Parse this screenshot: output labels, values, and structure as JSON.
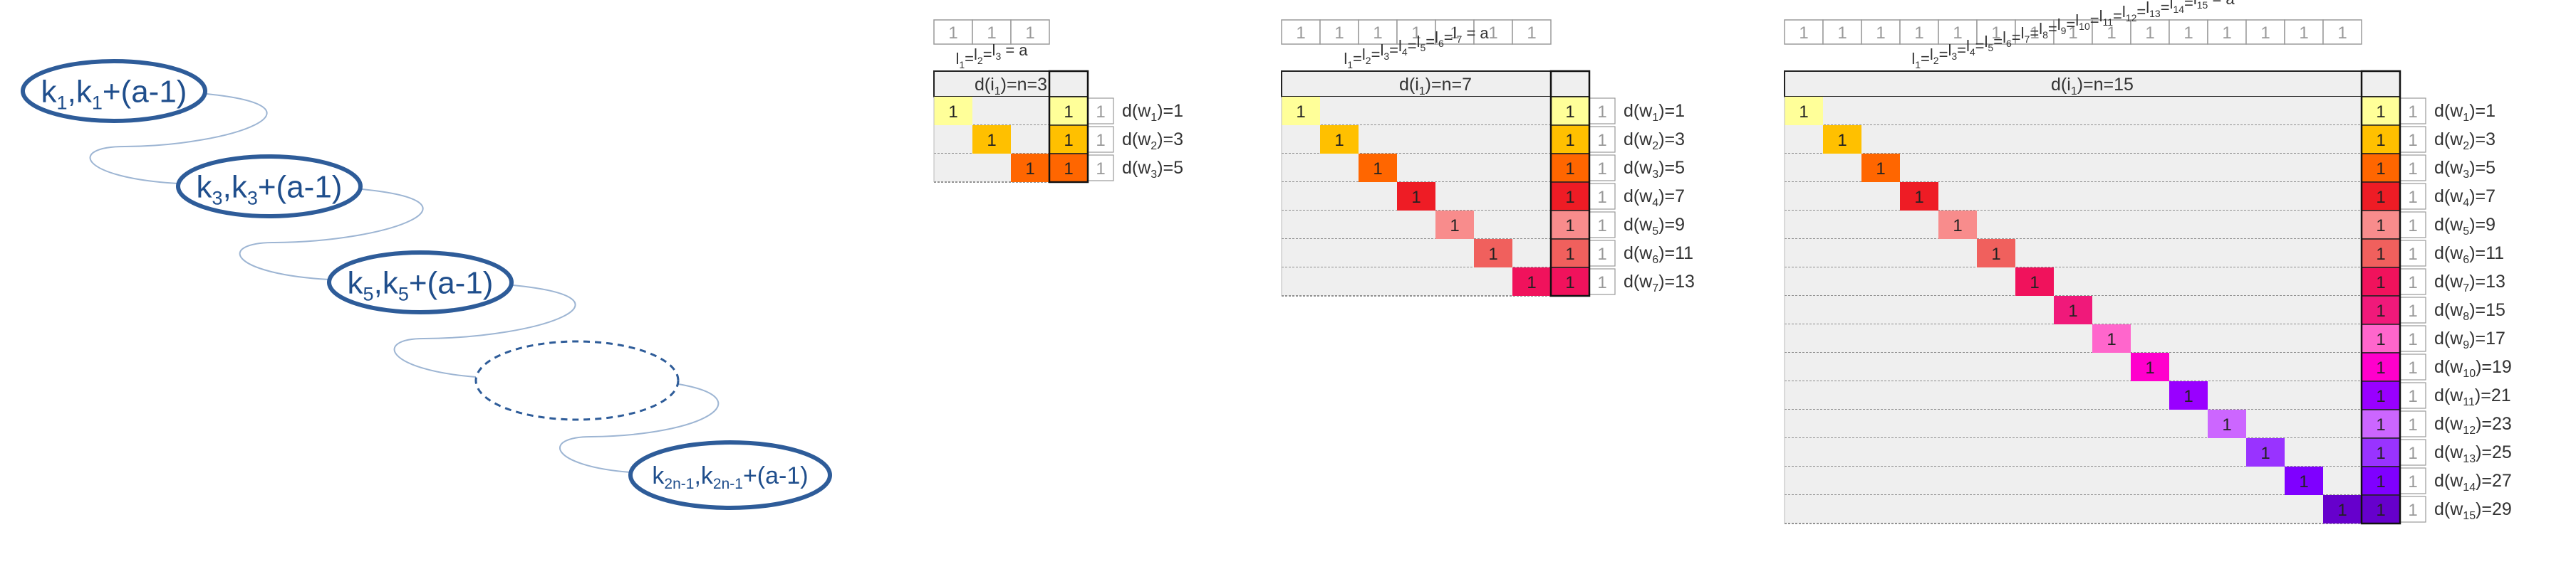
{
  "chain": {
    "ellipses": [
      {
        "base": "k",
        "sub": "1",
        "suffix": "+(a-1)"
      },
      {
        "base": "k",
        "sub": "3",
        "suffix": "+(a-1)"
      },
      {
        "base": "k",
        "sub": "5",
        "suffix": "+(a-1)"
      },
      {
        "base": "",
        "sub": "",
        "suffix": "",
        "dashed": true
      },
      {
        "base": "k",
        "sub": "2n-1",
        "suffix": "+(a-1)"
      }
    ]
  },
  "matrices": [
    {
      "n": 3,
      "title_text": "d(i",
      "title_sub": "1",
      "title_tail": ")=n=3",
      "top_value": "1",
      "cell_value": "1",
      "col_value": "1",
      "side_value": "1",
      "colors": [
        "#FFFF99",
        "#FFC000",
        "#FF6600"
      ],
      "rows": [
        {
          "label_pre": "d(w",
          "label_sub": "1",
          "label_post": ")=1"
        },
        {
          "label_pre": "d(w",
          "label_sub": "2",
          "label_post": ")=3"
        },
        {
          "label_pre": "d(w",
          "label_sub": "3",
          "label_post": ")=5"
        }
      ]
    },
    {
      "n": 7,
      "title_text": "d(i",
      "title_sub": "1",
      "title_tail": ")=n=7",
      "top_value": "1",
      "cell_value": "1",
      "col_value": "1",
      "side_value": "1",
      "colors": [
        "#FFFF99",
        "#FFC000",
        "#FF6600",
        "#EE1C25",
        "#F88C8C",
        "#F0605D",
        "#F0125C"
      ],
      "rows": [
        {
          "label_pre": "d(w",
          "label_sub": "1",
          "label_post": ")=1"
        },
        {
          "label_pre": "d(w",
          "label_sub": "2",
          "label_post": ")=3"
        },
        {
          "label_pre": "d(w",
          "label_sub": "3",
          "label_post": ")=5"
        },
        {
          "label_pre": "d(w",
          "label_sub": "4",
          "label_post": ")=7"
        },
        {
          "label_pre": "d(w",
          "label_sub": "5",
          "label_post": ")=9"
        },
        {
          "label_pre": "d(w",
          "label_sub": "6",
          "label_post": ")=11"
        },
        {
          "label_pre": "d(w",
          "label_sub": "7",
          "label_post": ")=13"
        }
      ]
    },
    {
      "n": 15,
      "title_text": "d(i",
      "title_sub": "1",
      "title_tail": ")=n=15",
      "top_value": "1",
      "cell_value": "1",
      "col_value": "1",
      "side_value": "1",
      "colors": [
        "#FFFF99",
        "#FFC000",
        "#FF6600",
        "#EE1C25",
        "#F88C8C",
        "#F0605D",
        "#F0125C",
        "#F0197A",
        "#FF66CC",
        "#FF00CC",
        "#9900FF",
        "#CC66FF",
        "#9933FF",
        "#7F00FF",
        "#6600CC"
      ],
      "rows": [
        {
          "label_pre": "d(w",
          "label_sub": "1",
          "label_post": ")=1"
        },
        {
          "label_pre": "d(w",
          "label_sub": "2",
          "label_post": ")=3"
        },
        {
          "label_pre": "d(w",
          "label_sub": "3",
          "label_post": ")=5"
        },
        {
          "label_pre": "d(w",
          "label_sub": "4",
          "label_post": ")=7"
        },
        {
          "label_pre": "d(w",
          "label_sub": "5",
          "label_post": ")=9"
        },
        {
          "label_pre": "d(w",
          "label_sub": "6",
          "label_post": ")=11"
        },
        {
          "label_pre": "d(w",
          "label_sub": "7",
          "label_post": ")=13"
        },
        {
          "label_pre": "d(w",
          "label_sub": "8",
          "label_post": ")=15"
        },
        {
          "label_pre": "d(w",
          "label_sub": "9",
          "label_post": ")=17"
        },
        {
          "label_pre": "d(w",
          "label_sub": "10",
          "label_post": ")=19"
        },
        {
          "label_pre": "d(w",
          "label_sub": "11",
          "label_post": ")=21"
        },
        {
          "label_pre": "d(w",
          "label_sub": "12",
          "label_post": ")=23"
        },
        {
          "label_pre": "d(w",
          "label_sub": "13",
          "label_post": ")=25"
        },
        {
          "label_pre": "d(w",
          "label_sub": "14",
          "label_post": ")=27"
        },
        {
          "label_pre": "d(w",
          "label_sub": "15",
          "label_post": ")=29"
        }
      ]
    }
  ],
  "l_labels": [
    {
      "letter": "l",
      "subs": [
        "1",
        "2",
        "3"
      ],
      "eq": "=",
      "tail": " = a"
    },
    {
      "letter": "l",
      "subs": [
        "1",
        "2",
        "3",
        "4",
        "5",
        "6",
        "7"
      ],
      "eq": "=",
      "tail": " = a"
    },
    {
      "letter": "l",
      "subs": [
        "1",
        "2",
        "3",
        "4",
        "5",
        "6",
        "7",
        "8",
        "9",
        "10",
        "11",
        "12",
        "13",
        "14",
        "15"
      ],
      "eq": "=",
      "tail": " = a"
    }
  ],
  "colors": {
    "ellipse_stroke": "#2E5C99",
    "ellipse_text": "#1F4E8C",
    "connector": "#9DB5D3",
    "grid_fill": "#EFEFEF",
    "grid_line": "#555555",
    "top_text": "#999999",
    "header_fill": "#EFEFEF"
  }
}
